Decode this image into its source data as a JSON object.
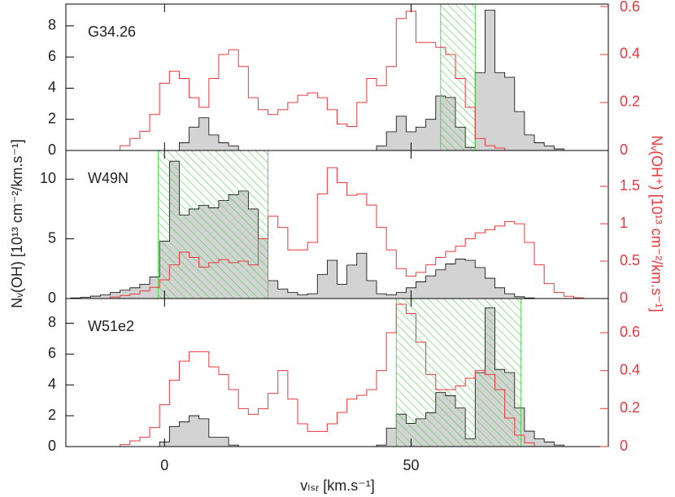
{
  "chart_data": [
    {
      "type": "step",
      "title": "G34.26",
      "x": [
        -20,
        -18,
        -16,
        -14,
        -12,
        -10,
        -8,
        -6,
        -4,
        -2,
        0,
        2,
        4,
        6,
        8,
        10,
        12,
        14,
        16,
        18,
        20,
        22,
        24,
        26,
        28,
        30,
        32,
        34,
        36,
        38,
        40,
        42,
        44,
        46,
        48,
        50,
        52,
        54,
        56,
        58,
        60,
        62,
        64,
        66,
        68,
        70,
        72,
        74,
        76,
        78,
        80,
        82,
        84,
        86,
        88,
        90
      ],
      "series": [
        {
          "color": "#d3d3d3",
          "values": [
            0,
            0,
            0,
            0,
            0,
            0,
            0,
            0,
            0,
            0,
            0,
            0,
            0.5,
            1.5,
            2.1,
            1,
            0.5,
            0.3,
            0,
            0,
            0,
            0,
            0,
            0,
            0,
            0,
            0,
            0,
            0,
            0,
            0,
            0,
            0.3,
            1.2,
            2.2,
            1.2,
            1.5,
            2,
            3.5,
            3.4,
            1.5,
            0.2,
            5,
            9,
            5,
            4.7,
            2.5,
            1,
            0.5,
            0.3,
            0.1,
            0,
            0,
            0,
            0,
            0
          ]
        },
        {
          "color": "#e8383d",
          "axis": "y2",
          "values": [
            0,
            0,
            0,
            0,
            0,
            0,
            0.02,
            0.05,
            0.08,
            0.15,
            0.28,
            0.33,
            0.3,
            0.22,
            0.18,
            0.3,
            0.4,
            0.42,
            0.35,
            0.22,
            0.17,
            0.15,
            0.17,
            0.2,
            0.23,
            0.24,
            0.22,
            0.17,
            0.11,
            0.1,
            0.2,
            0.3,
            0.27,
            0.35,
            0.55,
            0.58,
            0.45,
            0.45,
            0.43,
            0.4,
            0.3,
            0.18,
            0.05,
            0.02,
            0.01,
            0,
            0,
            0,
            0,
            0,
            0,
            0,
            0,
            0,
            0,
            0
          ]
        }
      ],
      "shade": [
        56,
        63
      ],
      "shade_color": "#33cc33",
      "xlim": [
        -20,
        90
      ],
      "xticks": [
        0,
        50
      ],
      "ylim": [
        0,
        9.4
      ],
      "yticks": [
        0,
        2,
        4,
        6,
        8
      ],
      "y2lim": [
        0,
        0.61
      ],
      "y2ticks": [
        0,
        0.2,
        0.4,
        0.6
      ]
    },
    {
      "type": "step",
      "title": "W49N",
      "ylabel": "Nᵥ(OH) [10¹³ cm⁻²/km.s⁻¹]",
      "y2label": "Nᵥ(OH⁺) [10¹³ cm⁻²/km.s⁻¹]",
      "x": [
        -20,
        -18,
        -16,
        -14,
        -12,
        -10,
        -8,
        -6,
        -4,
        -2,
        0,
        2,
        4,
        6,
        8,
        10,
        12,
        14,
        16,
        18,
        20,
        22,
        24,
        26,
        28,
        30,
        32,
        34,
        36,
        38,
        40,
        42,
        44,
        46,
        48,
        50,
        52,
        54,
        56,
        58,
        60,
        62,
        64,
        66,
        68,
        70,
        72,
        74,
        76,
        78,
        80,
        82,
        84,
        86,
        88,
        90
      ],
      "series": [
        {
          "color": "#d3d3d3",
          "values": [
            0,
            0.05,
            0.1,
            0.2,
            0.3,
            0.5,
            0.7,
            0.9,
            1.2,
            1.8,
            4.8,
            11.5,
            7,
            7.5,
            7.8,
            7.6,
            8.2,
            8.7,
            9,
            7.5,
            5,
            1.5,
            0.8,
            0.5,
            0.3,
            0.4,
            2,
            3.2,
            1.2,
            2.8,
            3.8,
            1.5,
            0.4,
            0.3,
            0.5,
            0.9,
            1.4,
            1.9,
            2.4,
            2.9,
            3.3,
            3.2,
            2.6,
            1.7,
            0.9,
            0.4,
            0.15,
            0.05,
            0,
            0,
            0,
            0,
            0,
            0,
            0,
            0
          ]
        },
        {
          "color": "#e8383d",
          "axis": "y2",
          "values": [
            0,
            0,
            0,
            0,
            0,
            0.02,
            0.04,
            0.06,
            0.1,
            0.15,
            0.25,
            0.45,
            0.62,
            0.55,
            0.42,
            0.48,
            0.52,
            0.48,
            0.5,
            0.45,
            0.8,
            1.1,
            0.95,
            0.65,
            0.65,
            0.75,
            1.4,
            1.75,
            1.55,
            1.38,
            1.4,
            1.25,
            0.95,
            0.65,
            0.4,
            0.3,
            0.35,
            0.45,
            0.55,
            0.63,
            0.7,
            0.8,
            0.88,
            0.92,
            0.97,
            1.03,
            1.0,
            0.75,
            0.45,
            0.2,
            0.08,
            0.03,
            0.01,
            0,
            0,
            0
          ]
        }
      ],
      "shade": [
        -1.3,
        21
      ],
      "shade_color": "#33cc33",
      "xlim": [
        -20,
        90
      ],
      "xticks": [
        0,
        50
      ],
      "ylim": [
        0,
        12.4
      ],
      "yticks": [
        0,
        5,
        10
      ],
      "y2lim": [
        0,
        1.98
      ],
      "y2ticks": [
        0,
        0.5,
        1,
        1.5
      ]
    },
    {
      "type": "step",
      "title": "W51e2",
      "xlabel": "vₗₛᵣ [km.s⁻¹]",
      "x": [
        -20,
        -18,
        -16,
        -14,
        -12,
        -10,
        -8,
        -6,
        -4,
        -2,
        0,
        2,
        4,
        6,
        8,
        10,
        12,
        14,
        16,
        18,
        20,
        22,
        24,
        26,
        28,
        30,
        32,
        34,
        36,
        38,
        40,
        42,
        44,
        46,
        48,
        50,
        52,
        54,
        56,
        58,
        60,
        62,
        64,
        66,
        68,
        70,
        72,
        74,
        76,
        78,
        80,
        82,
        84,
        86,
        88,
        90
      ],
      "series": [
        {
          "color": "#d3d3d3",
          "values": [
            0,
            0,
            0,
            0,
            0,
            0,
            0,
            0,
            0,
            0,
            0.3,
            1.3,
            1.6,
            2,
            1.8,
            0.6,
            0.6,
            0.1,
            0,
            0,
            0,
            0,
            0,
            0,
            0,
            0,
            0,
            0,
            0,
            0,
            0,
            0,
            0.1,
            1.2,
            2.1,
            1.5,
            1.8,
            2.2,
            3.5,
            3.3,
            2.5,
            0.5,
            4.8,
            9,
            5,
            4.8,
            2.5,
            1,
            0.5,
            0.3,
            0.1,
            0,
            0,
            0,
            0,
            0
          ]
        },
        {
          "color": "#e8383d",
          "axis": "y2",
          "values": [
            0,
            0,
            0,
            0,
            0,
            0,
            0.01,
            0.03,
            0.05,
            0.1,
            0.22,
            0.35,
            0.45,
            0.5,
            0.5,
            0.42,
            0.38,
            0.3,
            0.2,
            0.17,
            0.2,
            0.28,
            0.4,
            0.25,
            0.12,
            0.08,
            0.08,
            0.12,
            0.18,
            0.25,
            0.27,
            0.3,
            0.4,
            0.6,
            0.75,
            0.7,
            0.55,
            0.38,
            0.3,
            0.3,
            0.32,
            0.36,
            0.4,
            0.38,
            0.3,
            0.15,
            0.06,
            0.02,
            0,
            0,
            0,
            0,
            0,
            0,
            0,
            0
          ]
        }
      ],
      "shade": [
        47,
        72.3
      ],
      "shade_color": "#33cc33",
      "xlim": [
        -20,
        90
      ],
      "xticks": [
        0,
        50
      ],
      "ylim": [
        0,
        9.6
      ],
      "yticks": [
        0,
        2,
        4,
        6,
        8
      ],
      "y2lim": [
        0,
        0.78
      ],
      "y2ticks": [
        0,
        0.2,
        0.4,
        0.6
      ]
    }
  ]
}
